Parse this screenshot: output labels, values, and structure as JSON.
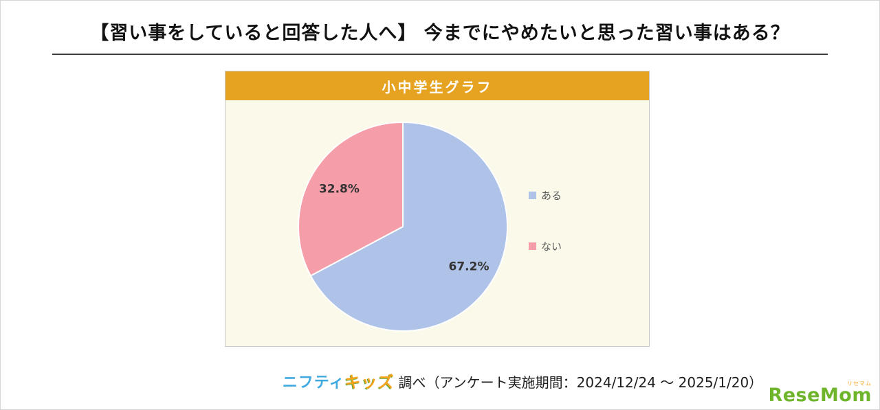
{
  "page": {
    "title": "【習い事をしていると回答した人へ】 今までにやめたいと思った習い事はある？"
  },
  "chart_data": {
    "type": "pie",
    "title": "小中学生グラフ",
    "labels": [
      "ある",
      "ない"
    ],
    "values": [
      67.2,
      32.8
    ],
    "value_labels": [
      "67.2%",
      "32.8%"
    ],
    "colors": [
      "#AFC3E8",
      "#F59EA9"
    ],
    "legend_position": "right",
    "start_angle": "top",
    "direction": "clockwise",
    "panel_header_color": "#E6A322",
    "panel_bg_color": "#FBF9E9"
  },
  "footer": {
    "nifty": "ニフティ",
    "kids": "キッズ",
    "survey_text": "調べ（アンケート実施期間：2024/12/24 ～ 2025/1/20）",
    "resemom": "ReseMom",
    "resemom_kana": "リセマム"
  }
}
